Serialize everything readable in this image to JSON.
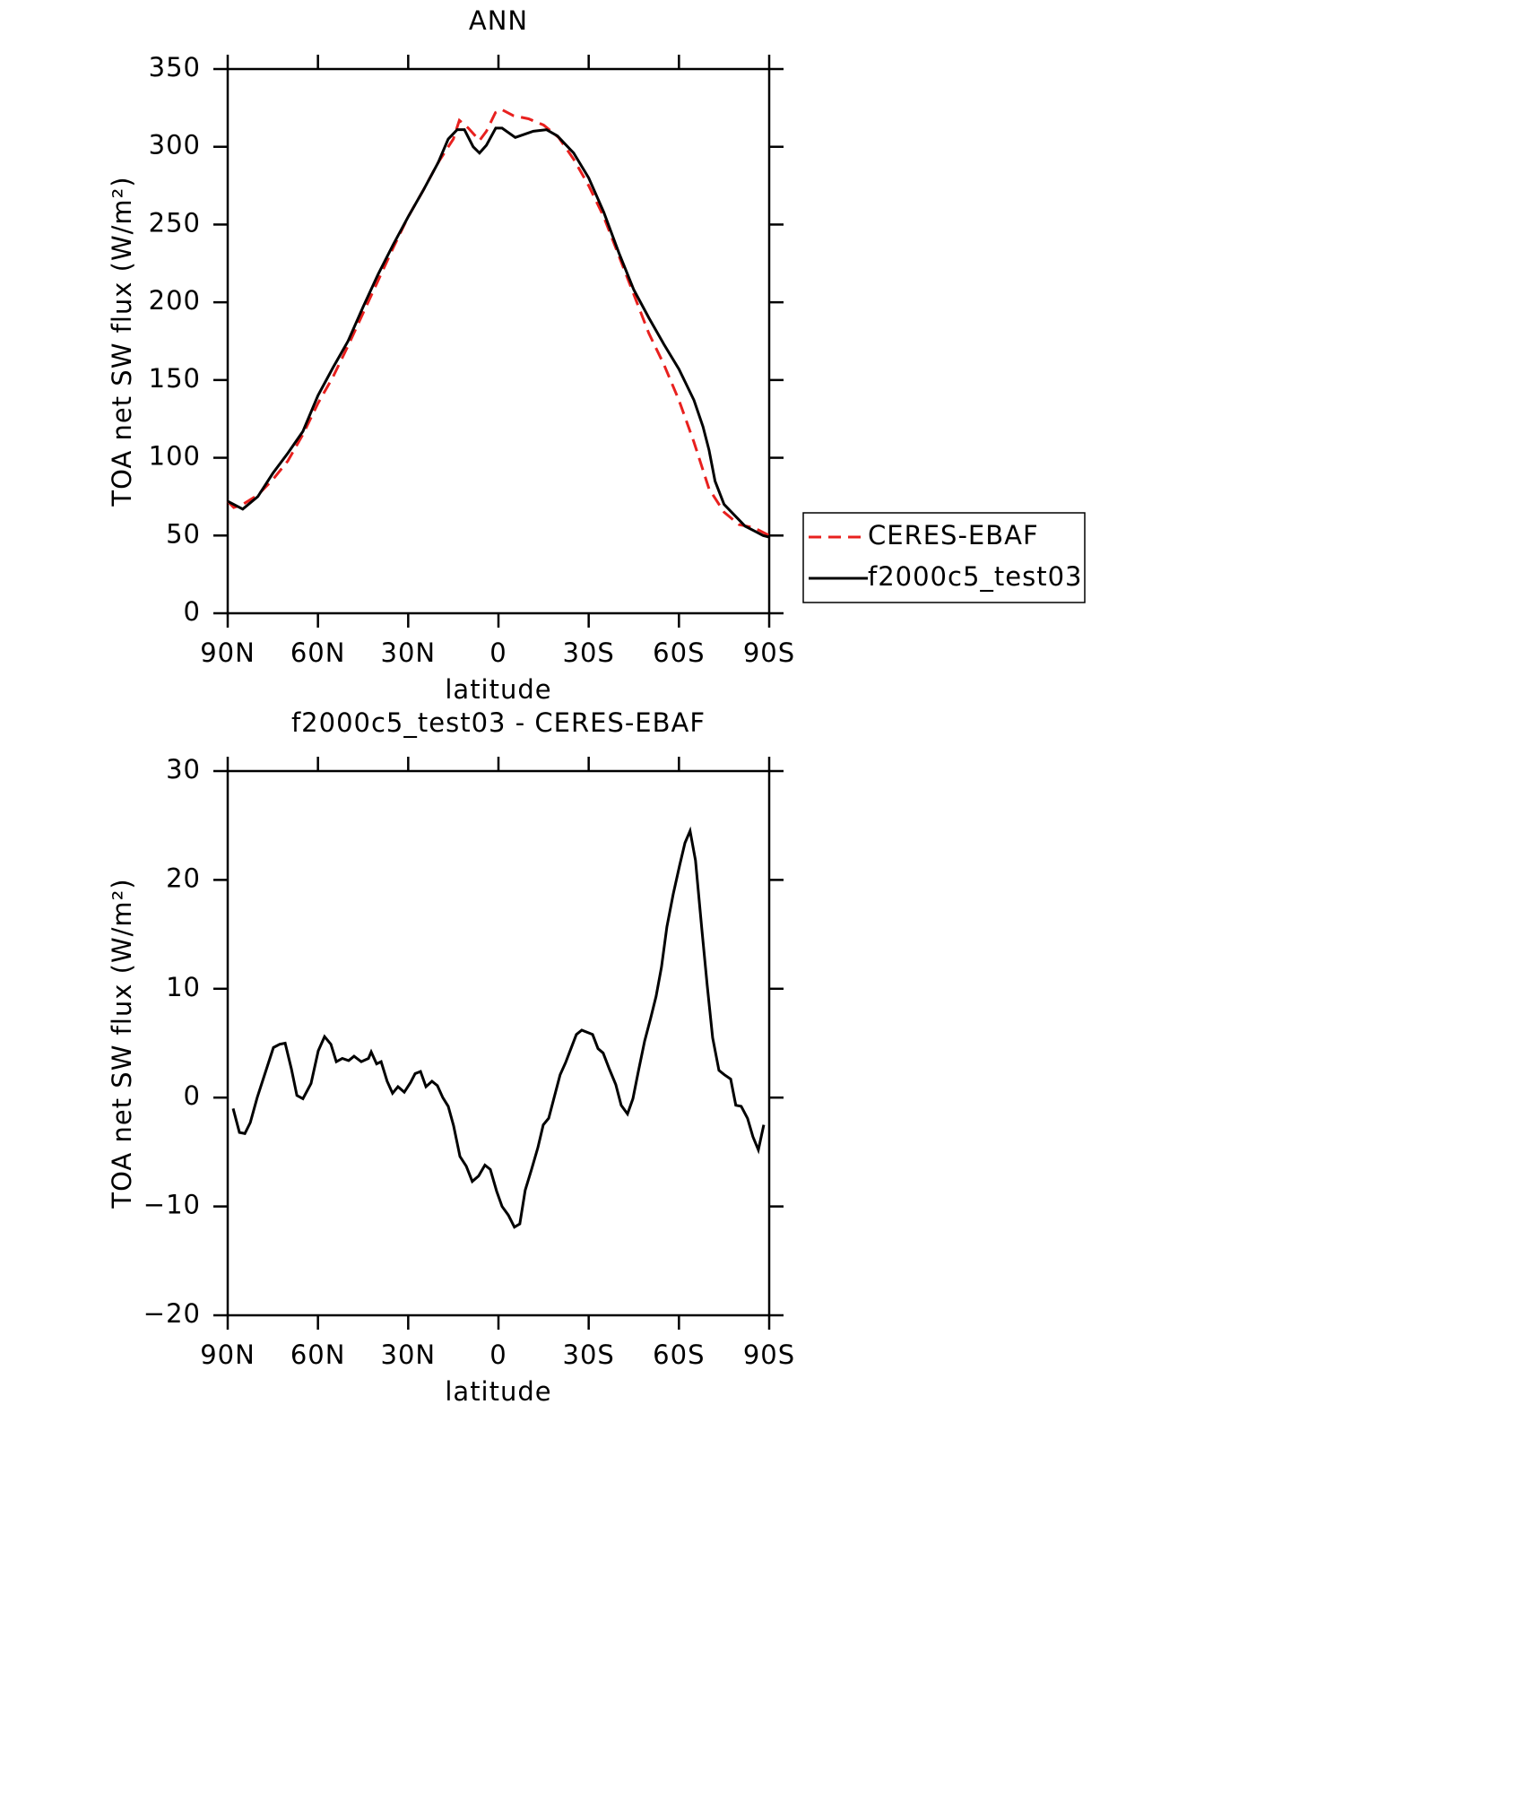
{
  "chart_data": [
    {
      "type": "line",
      "title": "ANN",
      "xlabel": "latitude",
      "ylabel": "TOA net SW flux (W/m²)",
      "xlim": [
        90,
        -90
      ],
      "ylim": [
        0,
        350
      ],
      "xticks": [
        {
          "value": 90,
          "label": "90N"
        },
        {
          "value": 60,
          "label": "60N"
        },
        {
          "value": 30,
          "label": "30N"
        },
        0,
        {
          "value": -30,
          "label": "30S"
        },
        {
          "value": -60,
          "label": "60S"
        },
        {
          "value": -90,
          "label": "90S"
        }
      ],
      "yticks": [
        0,
        50,
        100,
        150,
        200,
        250,
        300,
        350
      ],
      "legend": "outside-right",
      "series": [
        {
          "name": "CERES-EBAF",
          "color": "#e8201e",
          "dashed": true,
          "x": [
            90,
            88,
            85,
            80,
            75,
            70,
            65,
            60,
            55,
            50,
            45,
            40,
            35,
            30,
            25,
            20,
            15,
            13,
            10,
            6.3,
            4,
            1,
            -1,
            -5,
            -10,
            -15,
            -20,
            -25,
            -30,
            -35,
            -40,
            -45,
            -50,
            -55,
            -60,
            -65,
            -70,
            -75,
            -80,
            -85,
            -88,
            -90
          ],
          "values": [
            72,
            68,
            70,
            76,
            86,
            98,
            115,
            135,
            152,
            172,
            193,
            214,
            235,
            255,
            272,
            290,
            305,
            317,
            312,
            304,
            310,
            322,
            324,
            320,
            318,
            314,
            306,
            292,
            275,
            255,
            230,
            205,
            180,
            160,
            137,
            110,
            80,
            65,
            57,
            55,
            52,
            50
          ]
        },
        {
          "name": "f2000c5_test03",
          "color": "#000000",
          "dashed": false,
          "x": [
            90,
            88,
            85,
            80,
            75,
            70,
            65,
            60,
            55,
            50,
            45,
            40,
            35,
            30,
            25,
            20,
            16.7,
            13.7,
            11.3,
            8.4,
            6.3,
            4,
            0.9,
            -1.2,
            -5.6,
            -11.6,
            -16,
            -19.6,
            -25,
            -30,
            -35,
            -40,
            -45,
            -50,
            -55,
            -60,
            -65,
            -68,
            -70,
            -72,
            -75,
            -80,
            -82,
            -85,
            -88,
            -90
          ],
          "values": [
            72,
            70,
            67,
            75,
            90,
            103,
            117,
            140,
            158,
            175,
            197,
            218,
            237,
            255,
            272,
            290,
            305,
            311,
            311,
            300,
            296,
            301,
            312,
            312,
            306,
            310,
            311,
            307,
            296,
            280,
            258,
            232,
            208,
            190,
            173,
            157,
            137,
            120,
            105,
            85,
            70,
            60,
            56,
            53,
            50,
            49
          ]
        }
      ]
    },
    {
      "type": "line",
      "title": "f2000c5_test03 - CERES-EBAF",
      "xlabel": "latitude",
      "ylabel": "TOA net SW flux (W/m²)",
      "xlim": [
        90,
        -90
      ],
      "ylim": [
        -20,
        30
      ],
      "xticks": [
        {
          "value": 90,
          "label": "90N"
        },
        {
          "value": 60,
          "label": "60N"
        },
        {
          "value": 30,
          "label": "30N"
        },
        0,
        {
          "value": -30,
          "label": "30S"
        },
        {
          "value": -60,
          "label": "60S"
        },
        {
          "value": -90,
          "label": "90S"
        }
      ],
      "yticks": [
        {
          "value": -20,
          "label": "−20"
        },
        {
          "value": -10,
          "label": "−10"
        },
        0,
        10,
        20,
        30
      ],
      "series": [
        {
          "color": "#000000",
          "dashed": false,
          "x": [
            88.2,
            86.1,
            84.3,
            82.5,
            80.2,
            74.8,
            72.7,
            70.9,
            68.8,
            67,
            65,
            62.3,
            59.9,
            57.8,
            55.7,
            53.9,
            51.9,
            49.8,
            48,
            45.6,
            43.2,
            42.3,
            40.5,
            39,
            37,
            35.2,
            33.4,
            31.3,
            29.2,
            27.7,
            25.9,
            24.1,
            22.1,
            20.3,
            18.5,
            16.7,
            14.9,
            12.8,
            10.7,
            8.7,
            6.6,
            4.5,
            2.7,
            0.6,
            -1.2,
            -3.3,
            -5.3,
            -7.1,
            -8.9,
            -11,
            -13.1,
            -14.9,
            -16.7,
            -18.5,
            -20.5,
            -22.3,
            -24.1,
            -25.9,
            -27.7,
            -31.3,
            -33.1,
            -34.8,
            -36.9,
            -39,
            -40.8,
            -42.9,
            -44.7,
            -46.5,
            -48.6,
            -50.6,
            -52.4,
            -54.2,
            -56,
            -58.1,
            -60.2,
            -62,
            -63.7,
            -65.5,
            -67.6,
            -69.4,
            -71.2,
            -73.3,
            -75.1,
            -77.2,
            -78.9,
            -80.7,
            -82.8,
            -84.6,
            -86.4,
            -88.2
          ],
          "values": [
            -1,
            -3.2,
            -3.3,
            -2.3,
            0,
            4.6,
            4.9,
            5,
            2.6,
            0.2,
            -0.1,
            1.3,
            4.3,
            5.6,
            4.9,
            3.3,
            3.6,
            3.4,
            3.8,
            3.3,
            3.6,
            4.2,
            3.1,
            3.3,
            1.5,
            0.4,
            1,
            0.5,
            1.4,
            2.2,
            2.4,
            1,
            1.5,
            1.1,
            0,
            -0.8,
            -2.6,
            -5.4,
            -6.3,
            -7.7,
            -7.2,
            -6.2,
            -6.6,
            -8.6,
            -10,
            -10.8,
            -11.9,
            -11.6,
            -8.5,
            -6.6,
            -4.6,
            -2.5,
            -1.9,
            0,
            2.1,
            3.2,
            4.5,
            5.8,
            6.2,
            5.8,
            4.5,
            4.1,
            2.6,
            1.2,
            -0.7,
            -1.5,
            -0.1,
            2.4,
            5.2,
            7.3,
            9.3,
            12,
            15.7,
            18.7,
            21.3,
            23.4,
            24.5,
            21.8,
            15.5,
            10.3,
            5.5,
            2.5,
            2.1,
            1.7,
            -0.7,
            -0.8,
            -1.9,
            -3.6,
            -4.8,
            -2.5
          ]
        }
      ]
    }
  ]
}
